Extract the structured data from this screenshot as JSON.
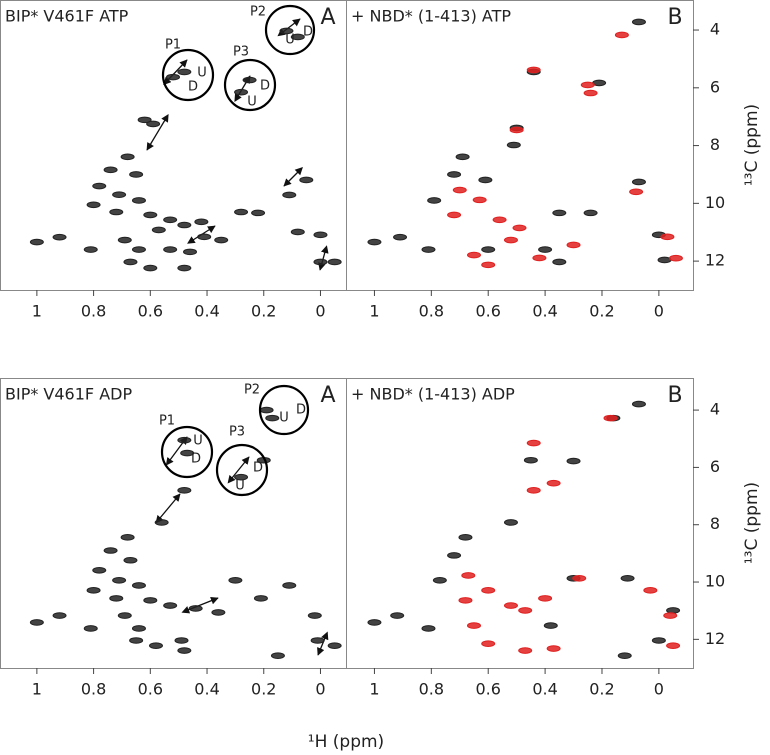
{
  "chart_data": [
    {
      "type": "scatter",
      "title": "BIP* V461F ATP",
      "title_color": "#222",
      "panel_label": "A",
      "xlim": [
        1.13,
        -0.09
      ],
      "ylim": [
        2.96,
        13.0
      ],
      "xticks": [
        1.0,
        0.8,
        0.6,
        0.4,
        0.2,
        0.0
      ],
      "annotations": [
        {
          "text": "P1",
          "color": "#222"
        },
        {
          "text": "U",
          "color": "#e02020"
        },
        {
          "text": "D",
          "color": "#222"
        },
        {
          "text": "P2",
          "color": "#222"
        },
        {
          "text": "D",
          "color": "#222"
        },
        {
          "text": "U",
          "color": "#e02020"
        },
        {
          "text": "P3",
          "color": "#222"
        },
        {
          "text": "D",
          "color": "#222"
        },
        {
          "text": "U",
          "color": "#e02020"
        }
      ],
      "series": [
        {
          "color": "#222",
          "x": [
            1.0,
            0.92,
            0.81,
            0.68,
            0.74,
            0.65,
            0.78,
            0.71,
            0.64,
            0.8,
            0.72,
            0.6,
            0.53,
            0.48,
            0.42,
            0.57,
            0.69,
            0.64,
            0.6,
            0.53,
            0.46,
            0.67,
            0.62,
            0.59,
            0.48,
            0.52,
            0.25,
            0.28,
            0.12,
            0.08,
            0.22,
            0.28,
            0.11,
            0.05,
            0.08,
            0.0,
            0.0,
            -0.05,
            0.41,
            0.35,
            0.48
          ],
          "values": [
            11.34,
            11.17,
            11.6,
            8.39,
            8.84,
            9.0,
            9.4,
            9.7,
            9.9,
            10.05,
            10.3,
            10.4,
            10.57,
            10.75,
            10.64,
            10.92,
            11.27,
            11.6,
            12.24,
            11.6,
            11.68,
            12.03,
            7.11,
            7.25,
            5.45,
            5.63,
            5.73,
            6.15,
            4.03,
            4.24,
            10.33,
            10.3,
            9.71,
            9.19,
            10.99,
            11.09,
            12.03,
            12.03,
            11.16,
            11.27,
            12.24
          ]
        }
      ]
    },
    {
      "type": "scatter",
      "title": "+ NBD* (1-413) ATP",
      "title_color": "#e02020",
      "panel_label": "B",
      "xlim": [
        1.1,
        -0.12
      ],
      "ylim": [
        2.96,
        13.0
      ],
      "xticks": [
        1.0,
        0.8,
        0.6,
        0.4,
        0.2,
        0.0
      ],
      "yticks": [
        4,
        6,
        8,
        10,
        12
      ],
      "ylabel": "¹³C (ppm)",
      "series": [
        {
          "color": "#222",
          "x": [
            1.0,
            0.91,
            0.81,
            0.69,
            0.72,
            0.79,
            0.61,
            0.51,
            0.5,
            0.44,
            0.21,
            0.07,
            0.35,
            0.24,
            0.07,
            0.0,
            -0.02,
            0.4,
            0.35,
            0.6
          ],
          "values": [
            11.34,
            11.17,
            11.6,
            8.39,
            9.0,
            9.9,
            9.19,
            7.98,
            7.39,
            5.45,
            5.83,
            3.72,
            10.33,
            10.33,
            9.26,
            11.09,
            11.96,
            11.6,
            12.03,
            11.6
          ]
        },
        {
          "color": "#e02020",
          "x": [
            0.44,
            0.25,
            0.24,
            0.5,
            0.13,
            0.08,
            -0.03,
            -0.06,
            0.7,
            0.63,
            0.72,
            0.56,
            0.49,
            0.52,
            0.65,
            0.6,
            0.42,
            0.3
          ],
          "values": [
            5.38,
            5.9,
            6.18,
            7.46,
            4.17,
            9.6,
            11.16,
            11.9,
            9.54,
            9.88,
            10.4,
            10.57,
            10.85,
            11.27,
            11.79,
            12.13,
            11.89,
            11.44
          ]
        }
      ]
    },
    {
      "type": "scatter",
      "title": "BIP* V461F ADP",
      "title_color": "#222",
      "panel_label": "A",
      "xlim": [
        1.13,
        -0.09
      ],
      "ylim": [
        2.88,
        13.0
      ],
      "xticks": [
        1.0,
        0.8,
        0.6,
        0.4,
        0.2,
        0.0
      ],
      "annotations": [
        {
          "text": "P1",
          "color": "#222"
        },
        {
          "text": "U",
          "color": "#e02020"
        },
        {
          "text": "D",
          "color": "#222"
        },
        {
          "text": "P2",
          "color": "#222"
        },
        {
          "text": "U",
          "color": "#e02020"
        },
        {
          "text": "D",
          "color": "#222"
        },
        {
          "text": "P3",
          "color": "#222"
        },
        {
          "text": "D",
          "color": "#222"
        },
        {
          "text": "U",
          "color": "#e02020"
        }
      ],
      "series": [
        {
          "color": "#222",
          "x": [
            1.0,
            0.92,
            0.81,
            0.68,
            0.74,
            0.67,
            0.78,
            0.71,
            0.64,
            0.8,
            0.72,
            0.6,
            0.53,
            0.44,
            0.69,
            0.64,
            0.58,
            0.49,
            0.65,
            0.48,
            0.56,
            0.48,
            0.47,
            0.2,
            0.28,
            0.19,
            0.17,
            0.3,
            0.11,
            0.21,
            0.36,
            0.48,
            0.15,
            0.01,
            -0.05,
            0.02
          ],
          "values": [
            11.41,
            11.17,
            11.62,
            8.44,
            8.9,
            9.24,
            9.59,
            9.94,
            10.12,
            10.29,
            10.57,
            10.64,
            10.82,
            10.92,
            11.17,
            11.62,
            12.22,
            12.04,
            12.04,
            6.8,
            7.92,
            5.05,
            5.5,
            5.75,
            6.34,
            4.0,
            4.28,
            9.94,
            10.12,
            10.57,
            11.06,
            12.39,
            12.57,
            12.04,
            12.22,
            11.17
          ]
        }
      ]
    },
    {
      "type": "scatter",
      "title": "+ NBD* (1-413) ADP",
      "title_color": "#e02020",
      "panel_label": "B",
      "xlim": [
        1.1,
        -0.12
      ],
      "ylim": [
        2.88,
        13.0
      ],
      "xticks": [
        1.0,
        0.8,
        0.6,
        0.4,
        0.2,
        0.0
      ],
      "yticks": [
        4,
        6,
        8,
        10,
        12
      ],
      "ylabel": "¹³C (ppm)",
      "xlabel": "¹H (ppm)",
      "series": [
        {
          "color": "#222",
          "x": [
            1.0,
            0.92,
            0.81,
            0.68,
            0.72,
            0.77,
            0.52,
            0.45,
            0.3,
            0.16,
            0.07,
            0.3,
            0.11,
            -0.05,
            0.0,
            0.12,
            0.38
          ],
          "values": [
            11.41,
            11.17,
            11.62,
            8.44,
            9.07,
            9.94,
            7.92,
            5.75,
            5.78,
            4.28,
            3.79,
            9.87,
            9.87,
            10.99,
            12.04,
            12.57,
            11.52
          ]
        },
        {
          "color": "#e02020",
          "x": [
            0.44,
            0.44,
            0.37,
            0.17,
            0.28,
            0.03,
            -0.04,
            -0.05,
            0.67,
            0.6,
            0.68,
            0.52,
            0.47,
            0.4,
            0.65,
            0.6,
            0.47,
            0.37
          ],
          "values": [
            5.15,
            6.8,
            6.55,
            4.28,
            9.87,
            10.29,
            11.17,
            12.22,
            9.77,
            10.29,
            10.64,
            10.82,
            10.99,
            10.57,
            11.52,
            12.15,
            12.39,
            12.32
          ]
        }
      ]
    }
  ]
}
